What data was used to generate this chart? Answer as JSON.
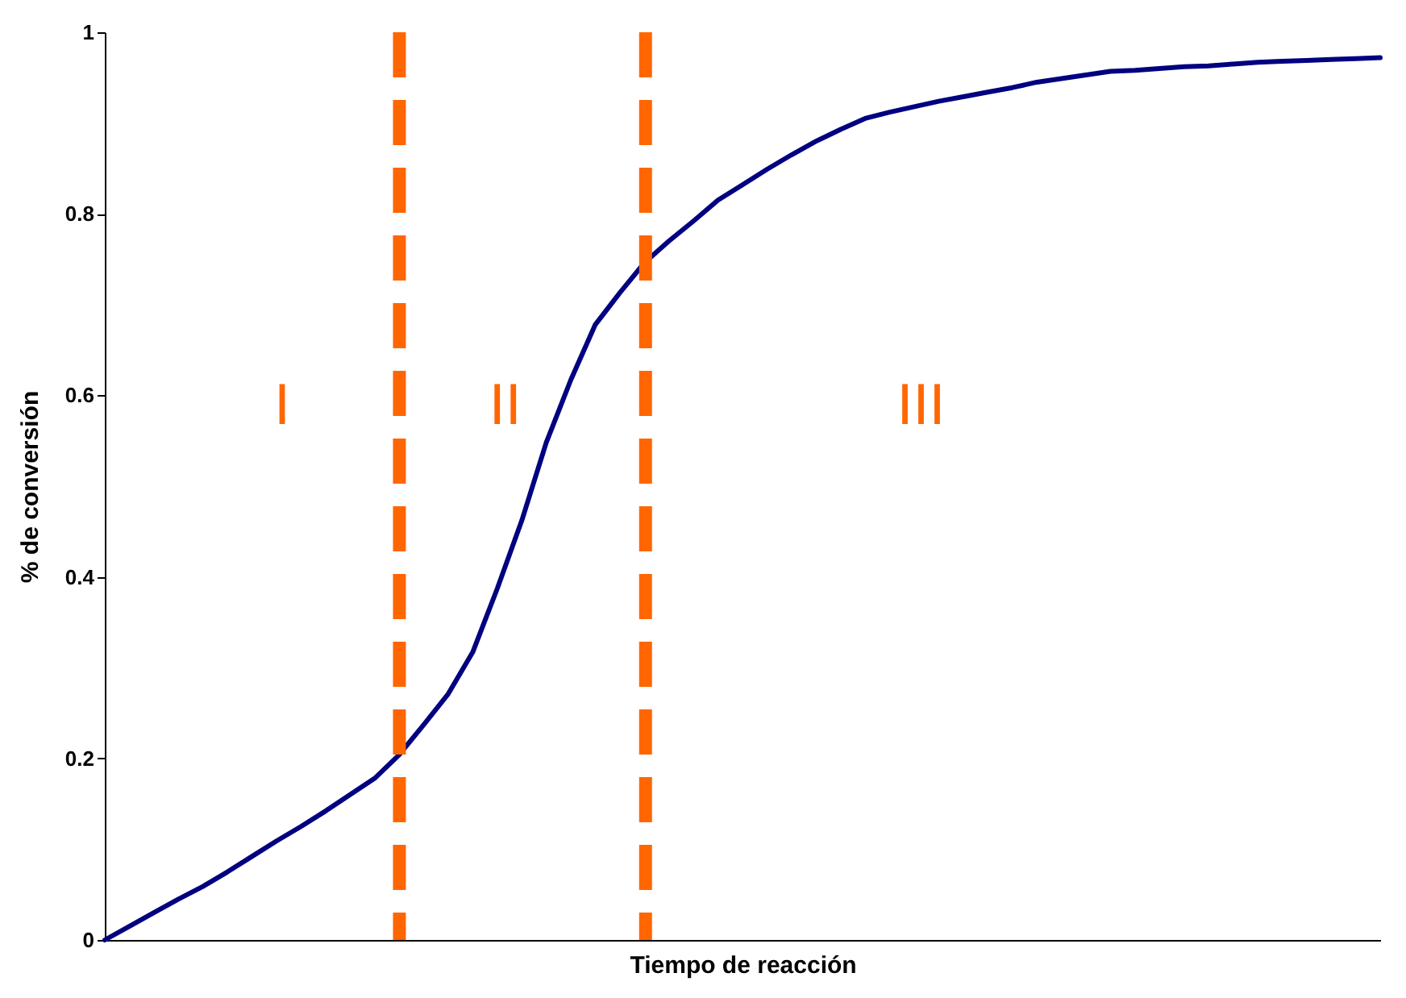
{
  "chart_data": {
    "type": "line",
    "xlabel": "Tiempo de reacción",
    "ylabel": "% de conversión",
    "categories": [
      null,
      null,
      null,
      null,
      null,
      null,
      null,
      null,
      null,
      null,
      null,
      null,
      null,
      null,
      null,
      null,
      null,
      null,
      null,
      null,
      null,
      null,
      null,
      null,
      null,
      null,
      null,
      null,
      null,
      null,
      null,
      null,
      null,
      null,
      null,
      null,
      null,
      null,
      null,
      null,
      null,
      null,
      null,
      null,
      null,
      null,
      null,
      null,
      null,
      null,
      null,
      null,
      null
    ],
    "series": [
      {
        "color": "#000080",
        "values": [
          0,
          0.015,
          0.03,
          0.045,
          0.059,
          0.075,
          0.092,
          0.109,
          0.125,
          0.142,
          0.16,
          0.178,
          0.204,
          0.237,
          0.271,
          0.317,
          0.387,
          0.462,
          0.548,
          0.617,
          0.678,
          0.713,
          0.746,
          0.77,
          0.792,
          0.815,
          0.832,
          0.849,
          0.865,
          0.88,
          0.893,
          0.905,
          0.912,
          0.918,
          0.924,
          0.929,
          0.934,
          0.939,
          0.945,
          0.949,
          0.953,
          0.957,
          0.958,
          0.96,
          0.962,
          0.963,
          0.965,
          0.967,
          0.968,
          0.969,
          0.97,
          0.971,
          0.972
        ]
      }
    ],
    "ylim": [
      0,
      1
    ],
    "yticks": [
      0,
      0.2,
      0.4,
      0.6,
      0.8,
      1
    ],
    "tick_labels": "y",
    "grid": false,
    "marker": "none",
    "line_style": "solid",
    "annotations": [
      "I",
      "II",
      "III"
    ]
  }
}
